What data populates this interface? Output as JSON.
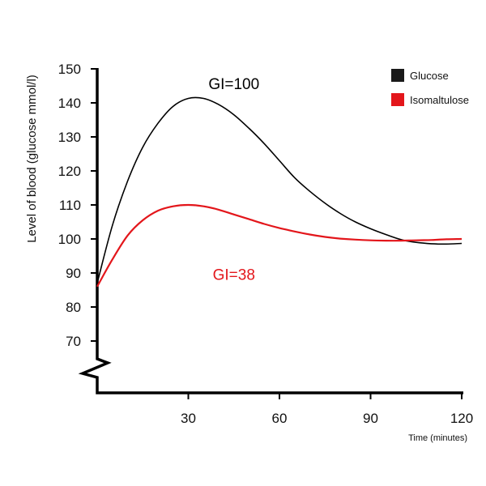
{
  "chart_data": {
    "type": "line",
    "xlabel": "Time (minutes)",
    "ylabel": "Level of blood (glucose mmol/l)",
    "x_ticks": [
      "30",
      "60",
      "90",
      "120"
    ],
    "y_ticks": [
      "70",
      "80",
      "90",
      "100",
      "110",
      "120",
      "130",
      "140",
      "150"
    ],
    "xlim": [
      0,
      120
    ],
    "ylim": [
      55,
      150
    ],
    "axis_break": "y",
    "grid": false,
    "legend_position": "top-right",
    "series": [
      {
        "name": "Glucose",
        "color": "#000000",
        "x": [
          0,
          5,
          10,
          15,
          20,
          25,
          30,
          35,
          40,
          45,
          50,
          55,
          60,
          65,
          70,
          75,
          80,
          85,
          90,
          95,
          100,
          105,
          110,
          115,
          120
        ],
        "y": [
          87,
          104,
          117,
          127,
          134,
          139,
          141.3,
          141.3,
          139.5,
          136.5,
          132.5,
          128,
          123,
          118,
          114,
          110.5,
          107.5,
          105,
          103,
          101.3,
          99.8,
          99,
          98.6,
          98.5,
          98.7
        ]
      },
      {
        "name": "Isomaltulose",
        "color": "#e3161b",
        "x": [
          0,
          5,
          10,
          15,
          20,
          25,
          30,
          35,
          40,
          45,
          50,
          55,
          60,
          65,
          70,
          75,
          80,
          85,
          90,
          95,
          100,
          105,
          110,
          115,
          120
        ],
        "y": [
          86,
          94,
          101,
          105.5,
          108.3,
          109.6,
          110,
          109.6,
          108.6,
          107.2,
          105.8,
          104.4,
          103.2,
          102.2,
          101.3,
          100.6,
          100.1,
          99.8,
          99.6,
          99.5,
          99.5,
          99.6,
          99.7,
          99.9,
          100
        ]
      }
    ],
    "annotations": [
      {
        "text": "GI=100",
        "color": "#000000",
        "x": 45,
        "y": 144
      },
      {
        "text": "GI=38",
        "color": "#e3161b",
        "x": 45,
        "y": 88
      }
    ]
  }
}
